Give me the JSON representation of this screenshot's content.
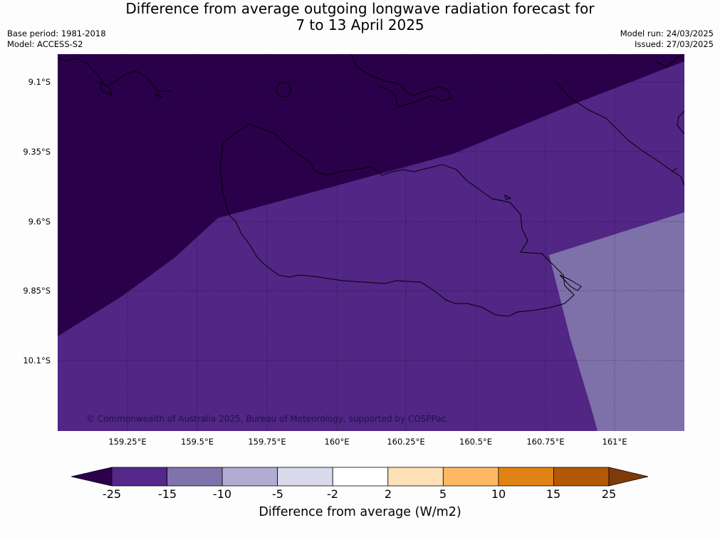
{
  "title_line1": "Difference from average outgoing longwave radiation forecast for",
  "title_line2": "7 to 13 April 2025",
  "base_period": "Base period: 1981-2018",
  "model": "Model: ACCESS-S2",
  "model_run": "Model run: 24/03/2025",
  "issued": "Issued: 27/03/2025",
  "copyright": "© Commonwealth of Australia 2025, Bureau of Meteorology, supported by COSPPac",
  "latitudes": [
    "9.1°S",
    "9.35°S",
    "9.6°S",
    "9.85°S",
    "10.1°S"
  ],
  "longitudes": [
    "159.25°E",
    "159.5°E",
    "159.75°E",
    "160°E",
    "160.25°E",
    "160.5°E",
    "160.75°E",
    "161°E"
  ],
  "colorbar": {
    "title": "Difference from average (W/m2)",
    "ticks": [
      "-25",
      "-15",
      "-10",
      "-5",
      "-2",
      "2",
      "5",
      "10",
      "15",
      "25"
    ],
    "under_color": "#2d004b",
    "over_color": "#7f3b08",
    "bin_colors": [
      "#542788",
      "#8073ac",
      "#b2abd2",
      "#d8daeb",
      "#ffffff",
      "#fee0b6",
      "#fdb863",
      "#e08214",
      "#b35806"
    ]
  },
  "map_colors": {
    "below_25": "#2a004a",
    "band_25_15": "#512685",
    "band_15_10": "#7e71aa"
  }
}
